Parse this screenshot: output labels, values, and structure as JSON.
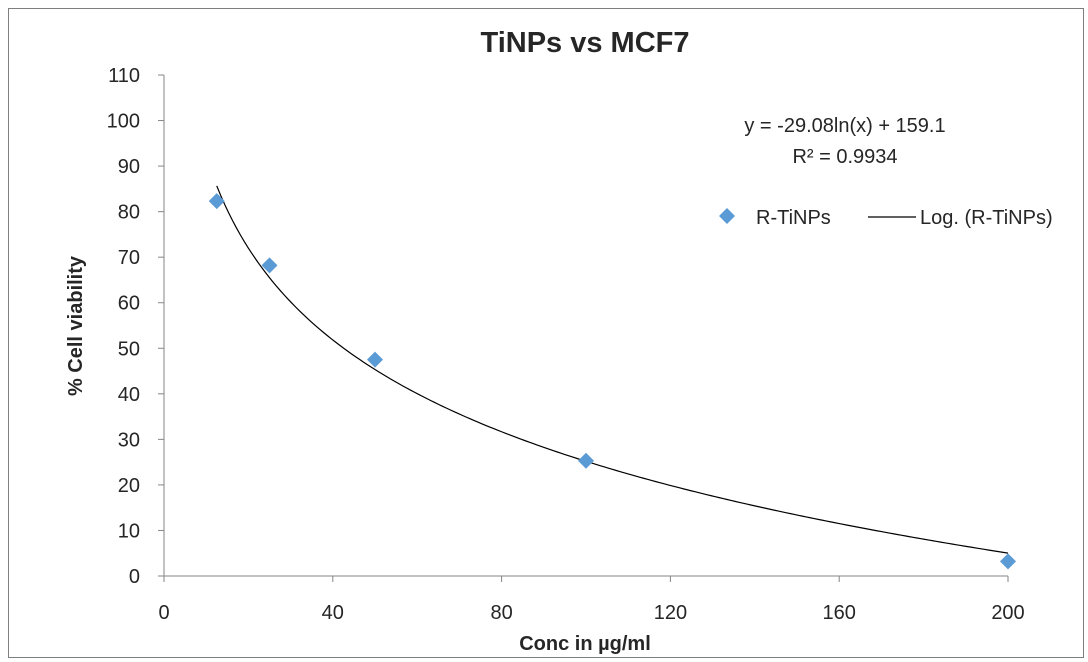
{
  "chart_data": {
    "type": "scatter",
    "title": "TiNPs vs MCF7",
    "xlabel": "Conc in µg/ml",
    "ylabel": "%  Cell viability",
    "xlim": [
      0,
      200
    ],
    "ylim": [
      0,
      110
    ],
    "xticks": [
      0,
      40,
      80,
      120,
      160,
      200
    ],
    "yticks": [
      0,
      10,
      20,
      30,
      40,
      50,
      60,
      70,
      80,
      90,
      100,
      110
    ],
    "grid": false,
    "legend_position": "right",
    "series": [
      {
        "name": "R-TiNPs",
        "marker": "diamond",
        "color": "#5b9bd5",
        "points": [
          {
            "x": 12.5,
            "y": 82.3
          },
          {
            "x": 25,
            "y": 68.2
          },
          {
            "x": 50,
            "y": 47.5
          },
          {
            "x": 100,
            "y": 25.3
          },
          {
            "x": 200,
            "y": 3.2
          }
        ]
      }
    ],
    "trendline": {
      "name": "Log. (R-TiNPs)",
      "type": "logarithmic",
      "a": -29.08,
      "b": 159.1,
      "x_range": [
        12.5,
        200
      ],
      "color": "#000000",
      "equation": "y = -29.08ln(x) + 159.1",
      "r2": "R² = 0.9934"
    }
  }
}
